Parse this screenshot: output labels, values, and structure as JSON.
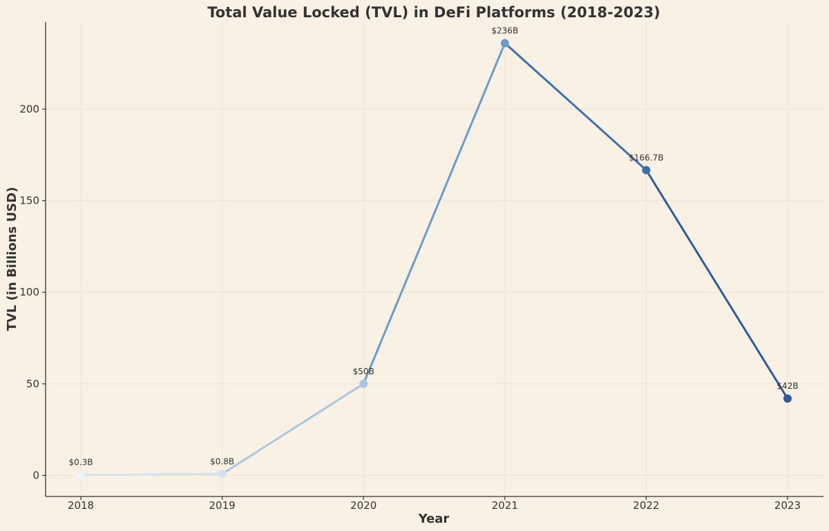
{
  "chart_data": {
    "type": "line",
    "title": "Total Value Locked (TVL) in DeFi Platforms (2018-2023)",
    "xlabel": "Year",
    "ylabel": "TVL (in Billions USD)",
    "categories": [
      "2018",
      "2019",
      "2020",
      "2021",
      "2022",
      "2023"
    ],
    "values": [
      0.3,
      0.8,
      50,
      236,
      166.7,
      42
    ],
    "data_labels": [
      "$0.3B",
      "$0.8B",
      "$50B",
      "$236B",
      "$166.7B",
      "$42B"
    ],
    "y_ticks": [
      0,
      50,
      100,
      150,
      200
    ],
    "ylim": [
      -11.5,
      247.5
    ],
    "grid": true,
    "legend": "none",
    "colors": [
      "#eef3f9",
      "#d4e2f1",
      "#a8c7e0",
      "#6b9bc8",
      "#3d6fae",
      "#2b5a9e"
    ]
  }
}
